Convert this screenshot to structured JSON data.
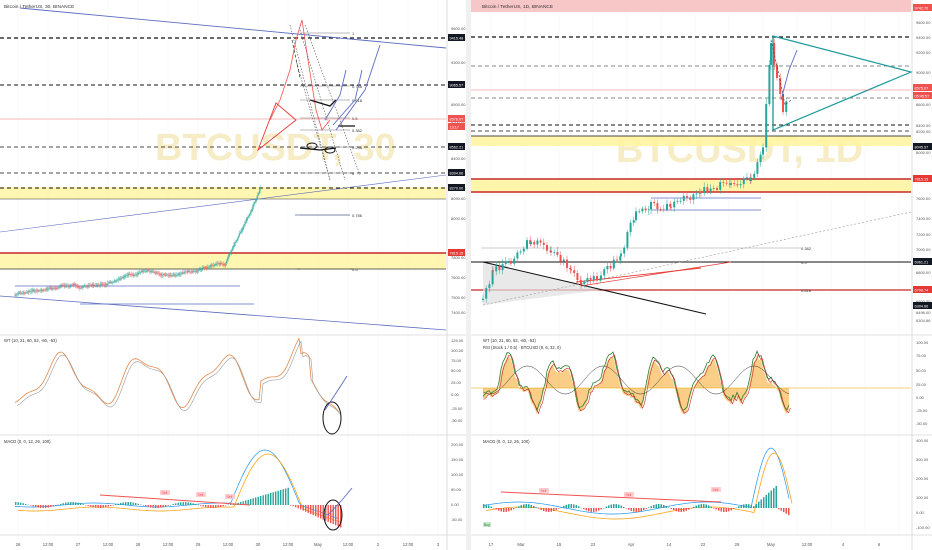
{
  "left": {
    "header": "Bitcoin / TetherUS, 30, BINANCE",
    "watermark": "BTCUSDT, 30",
    "price_axis": [
      "9600.00",
      "9415.48",
      "9300.00",
      "9065.57",
      "8900.00",
      "8700.00",
      "8562.21",
      "8400.00",
      "8304.66",
      "8270.00",
      "8090.00",
      "8000.00",
      "7815.15",
      "7800.00",
      "7600.00",
      "7500.00",
      "7400.00"
    ],
    "price_tags": [
      {
        "label": "9415.48",
        "color": "#131722"
      },
      {
        "label": "9065.57",
        "color": "#131722"
      },
      {
        "label": "8576.07",
        "color": "#ef5350"
      },
      {
        "label": "13:17",
        "color": "#ef5350"
      },
      {
        "label": "8562.21",
        "color": "#131722"
      },
      {
        "label": "8304.66",
        "color": "#131722"
      },
      {
        "label": "8270.00",
        "color": "#131722"
      },
      {
        "label": "7815.15",
        "color": "#e53935"
      }
    ],
    "fib_labels": [
      "1",
      "0.786",
      "0.618",
      "0.5",
      "0.382",
      "0.236",
      "0",
      "0.786",
      "0.5"
    ],
    "time_axis": [
      "26",
      "12:00",
      "27",
      "12:00",
      "28",
      "12:00",
      "29",
      "12:00",
      "30",
      "12:00",
      "May",
      "12:00",
      "2",
      "12:00",
      "3"
    ],
    "wt_title": "WT (10, 21, 60, 53, -60, -53)",
    "wt_axis": [
      "125.00",
      "100.00",
      "75.00",
      "50.00",
      "25.00",
      "0.00",
      "-25.00",
      "-50.00"
    ],
    "macd_title": "MACD (0, 0, 12, 26, 100)",
    "macd_axis": [
      "200.00",
      "150.00",
      "100.00",
      "50.00",
      "0.00",
      "-50.00"
    ],
    "sell_labels": [
      "Sell",
      "Sell",
      "Sell"
    ],
    "buy_label": "Buy"
  },
  "right": {
    "header": "Bitcoin / TetherUS, 1D, BINANCE",
    "watermark": "BTCUSDT, 1D",
    "price_axis": [
      "9742.70",
      "9600.00",
      "9400.00",
      "9200.00",
      "9000.00",
      "8800.00",
      "8600.00",
      "8400.00",
      "8200.00",
      "8045.57",
      "8000.00",
      "7815.15",
      "7600.00",
      "7400.00",
      "7200.00",
      "7000.00",
      "6961.21",
      "6800.00",
      "6708.74",
      "6600.00",
      "6496.00",
      "6304.66"
    ],
    "price_tags": [
      {
        "label": "9742.70",
        "color": "#ef5350"
      },
      {
        "label": "8575.07",
        "color": "#ef5350"
      },
      {
        "label": "05:45:57",
        "color": "#ef5350"
      },
      {
        "label": "8045.57",
        "color": "#131722"
      },
      {
        "label": "7815.15",
        "color": "#e53935"
      },
      {
        "label": "6961.21",
        "color": "#131722"
      },
      {
        "label": "6708.74",
        "color": "#e53935"
      },
      {
        "label": "6304.66",
        "color": "#131722"
      }
    ],
    "fib_labels": [
      "0.382",
      "0.5",
      "0.618"
    ],
    "time_axis": [
      "17",
      "Mar",
      "15",
      "22",
      "Apr",
      "14",
      "22",
      "29",
      "May",
      "12:00",
      "4",
      "6"
    ],
    "wt_title": "WT (10, 21, 60, 53, -60, -53)",
    "rsi_title": "RSI (Stock 1 / 0.5) · BTCUSD (9, 6, 32, 0)",
    "wt_axis": [
      "100.00",
      "75.00",
      "50.00",
      "25.00",
      "0.00",
      "-25.00",
      "-50.00"
    ],
    "macd_title": "MACD (0, 0, 12, 26, 100)",
    "macd_axis": [
      "400.00",
      "300.00",
      "200.00",
      "100.00",
      "0.00",
      "-100.00"
    ],
    "sell_labels": [
      "Sell",
      "Sell",
      "Sell"
    ],
    "buy_label": "Buy"
  },
  "colors": {
    "up": "#26a69a",
    "down": "#ef5350",
    "zone": "#fff59d",
    "trend": "#5c6bc0",
    "wt_orange": "#f5a623",
    "support_red": "#c62828"
  },
  "chart_data": [
    {
      "type": "line",
      "panel": "left-price",
      "description_series": "BTCUSDT 30m close",
      "x": [
        "26",
        "27",
        "28",
        "29",
        "30",
        "May",
        "2",
        "3"
      ],
      "values": [
        7550,
        7650,
        7700,
        7780,
        8700,
        8600,
        8576,
        null
      ],
      "ylim": [
        7400,
        9700
      ]
    },
    {
      "type": "line",
      "panel": "right-price",
      "x": [
        "Mar",
        "15",
        "22",
        "Apr",
        "14",
        "22",
        "29",
        "May"
      ],
      "values": [
        6900,
        7050,
        6500,
        6750,
        7650,
        7650,
        7950,
        8575
      ],
      "ylim": [
        6300,
        9750
      ]
    }
  ]
}
